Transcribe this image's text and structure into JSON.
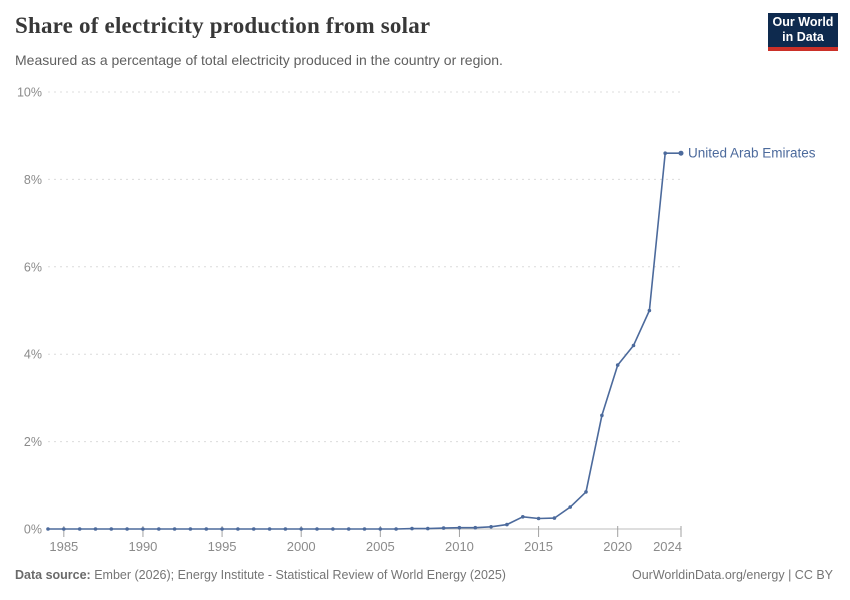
{
  "header": {
    "title": "Share of electricity production from solar",
    "subtitle": "Measured as a percentage of total electricity produced in the country or region.",
    "logo_line1": "Our World",
    "logo_line2": "in Data"
  },
  "colors": {
    "line": "#4c6a9c",
    "entity_label": "#4c6a9c",
    "grid": "#dcdcdc",
    "zero_axis": "#bdbdbd",
    "tick": "#a2a2a2",
    "axis_text": "#8b8b8b",
    "logo_navy": "#0e2a4e",
    "logo_red": "#cb3028"
  },
  "chart_data": {
    "type": "line",
    "title": "Share of electricity production from solar",
    "subtitle": "Measured as a percentage of total electricity produced in the country or region.",
    "entity_label": "United Arab Emirates",
    "xlim": [
      1984,
      2024
    ],
    "ylim": [
      0,
      10
    ],
    "grid": "horizontal-dashed",
    "legend_position": "end-of-line-label",
    "yticks": [
      0,
      2,
      4,
      6,
      8,
      10
    ],
    "ytick_labels": [
      "0%",
      "2%",
      "4%",
      "6%",
      "8%",
      "10%"
    ],
    "xticks": [
      1985,
      1990,
      1995,
      2000,
      2005,
      2010,
      2015,
      2020,
      2024
    ],
    "series": [
      {
        "name": "United Arab Emirates",
        "x": [
          1984,
          1985,
          1986,
          1987,
          1988,
          1989,
          1990,
          1991,
          1992,
          1993,
          1994,
          1995,
          1996,
          1997,
          1998,
          1999,
          2000,
          2001,
          2002,
          2003,
          2004,
          2005,
          2006,
          2007,
          2008,
          2009,
          2010,
          2011,
          2012,
          2013,
          2014,
          2015,
          2016,
          2017,
          2018,
          2019,
          2020,
          2021,
          2022,
          2023,
          2024
        ],
        "values": [
          0,
          0,
          0,
          0,
          0,
          0,
          0,
          0,
          0,
          0,
          0,
          0,
          0,
          0,
          0,
          0,
          0,
          0,
          0,
          0,
          0,
          0,
          0,
          0.01,
          0.01,
          0.02,
          0.03,
          0.03,
          0.05,
          0.1,
          0.28,
          0.24,
          0.25,
          0.5,
          0.85,
          2.6,
          3.75,
          4.2,
          5,
          8.6,
          8.6
        ]
      }
    ]
  },
  "footer": {
    "source_label": "Data source:",
    "source_text": "Ember (2026); Energy Institute - Statistical Review of World Energy (2025)",
    "link_text": "OurWorldinData.org/energy | CC BY"
  }
}
